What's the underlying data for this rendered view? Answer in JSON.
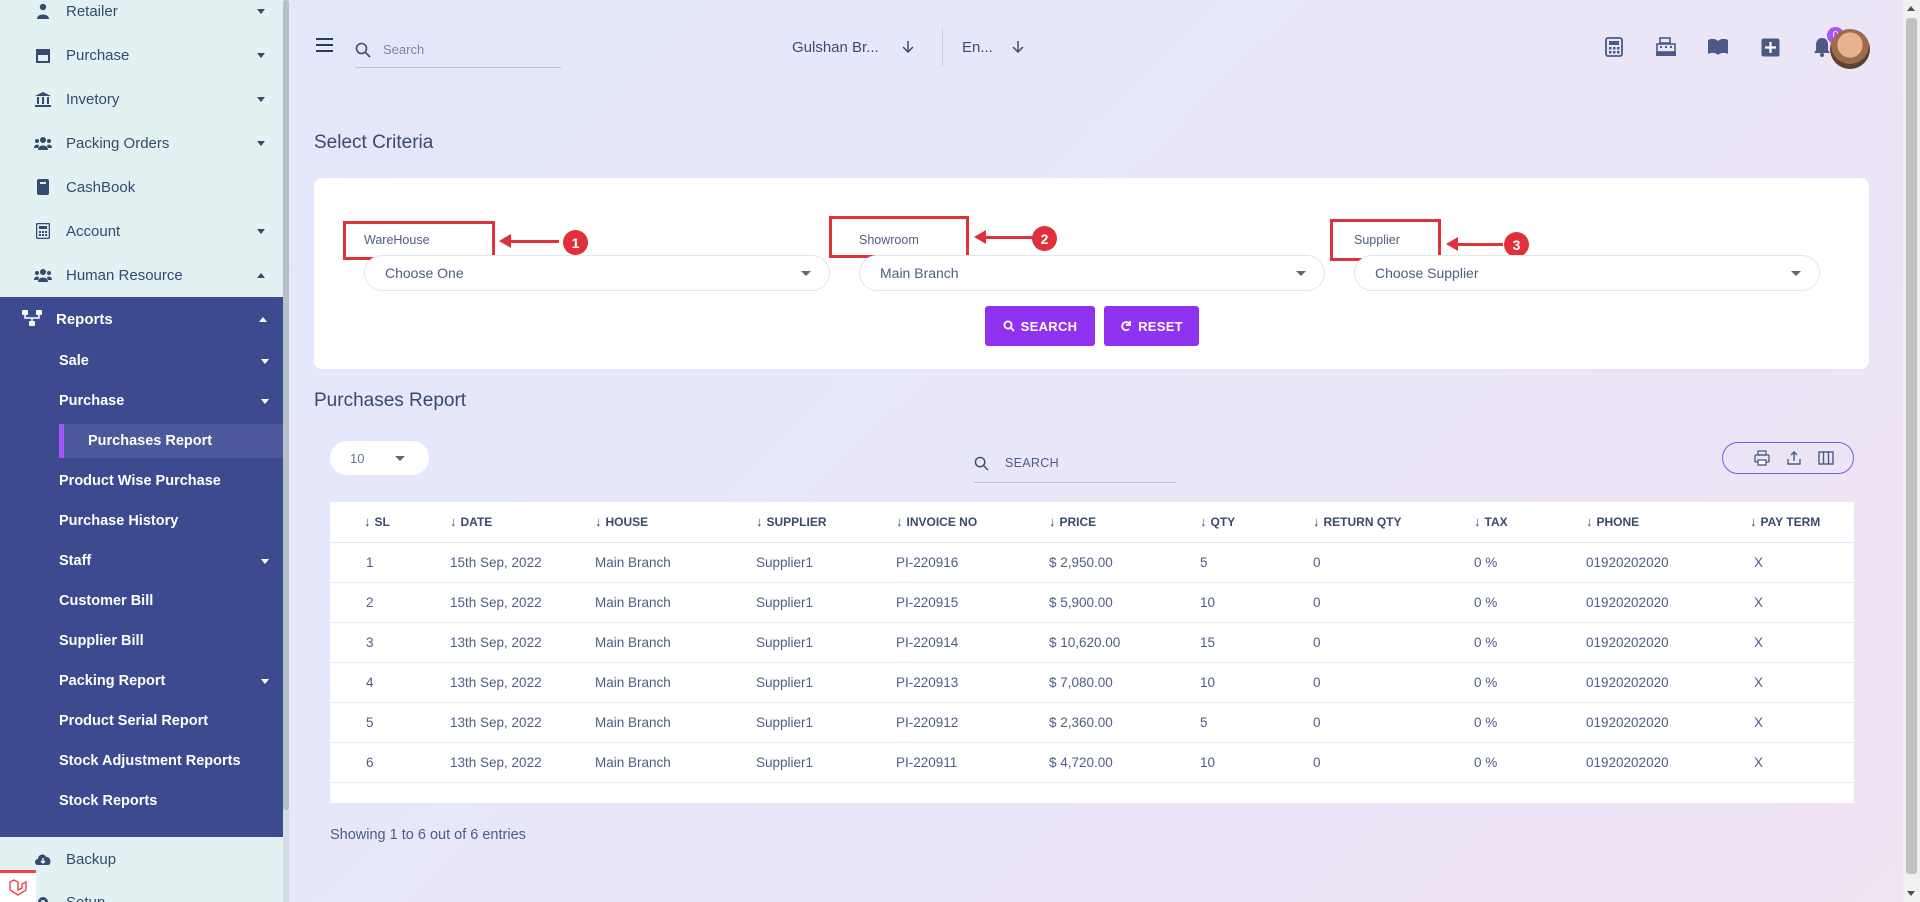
{
  "sidebar": {
    "top_items": [
      {
        "label": "Retailer",
        "icon": "user-tie-icon",
        "has_caret": true
      },
      {
        "label": "Purchase",
        "icon": "store-icon",
        "has_caret": true
      },
      {
        "label": "Invetory",
        "icon": "bank-icon",
        "has_caret": true
      },
      {
        "label": "Packing Orders",
        "icon": "users-icon",
        "has_caret": true
      },
      {
        "label": "CashBook",
        "icon": "book-icon",
        "has_caret": false
      },
      {
        "label": "Account",
        "icon": "calculator-icon",
        "has_caret": true
      },
      {
        "label": "Human Resource",
        "icon": "users-icon",
        "has_caret": true
      }
    ],
    "reports": {
      "label": "Reports",
      "items": [
        {
          "label": "Sale"
        },
        {
          "label": "Purchase"
        },
        {
          "label": "Purchases Report"
        },
        {
          "label": "Product Wise Purchase"
        },
        {
          "label": "Purchase History"
        },
        {
          "label": "Staff"
        },
        {
          "label": "Customer Bill"
        },
        {
          "label": "Supplier Bill"
        },
        {
          "label": "Packing Report"
        },
        {
          "label": "Product Serial Report"
        },
        {
          "label": "Stock Adjustment Reports"
        },
        {
          "label": "Stock Reports"
        }
      ]
    },
    "bottom_items": [
      {
        "label": "Backup"
      },
      {
        "label": "Setup"
      }
    ]
  },
  "header": {
    "search_placeholder": "Search",
    "branch": "Gulshan Br...",
    "language": "En...",
    "notification_count": "0"
  },
  "criteria": {
    "title": "Select Criteria",
    "warehouse": {
      "label": "WareHouse",
      "value": "Choose One",
      "annotation": "1"
    },
    "showroom": {
      "label": "Showroom",
      "value": "Main Branch",
      "annotation": "2"
    },
    "supplier": {
      "label": "Supplier",
      "value": "Choose Supplier",
      "annotation": "3"
    },
    "search_button": "SEARCH",
    "reset_button": "RESET"
  },
  "report": {
    "title": "Purchases Report",
    "page_length": "10",
    "search_placeholder": "SEARCH",
    "columns": [
      "SL",
      "DATE",
      "HOUSE",
      "SUPPLIER",
      "INVOICE NO",
      "PRICE",
      "QTY",
      "RETURN QTY",
      "TAX",
      "PHONE",
      "PAY TERM"
    ],
    "rows": [
      [
        "1",
        "15th Sep, 2022",
        "Main Branch",
        "Supplier1",
        "PI-220916",
        "$ 2,950.00",
        "5",
        "0",
        "0 %",
        "01920202020",
        "X"
      ],
      [
        "2",
        "15th Sep, 2022",
        "Main Branch",
        "Supplier1",
        "PI-220915",
        "$ 5,900.00",
        "10",
        "0",
        "0 %",
        "01920202020",
        "X"
      ],
      [
        "3",
        "13th Sep, 2022",
        "Main Branch",
        "Supplier1",
        "PI-220914",
        "$ 10,620.00",
        "15",
        "0",
        "0 %",
        "01920202020",
        "X"
      ],
      [
        "4",
        "13th Sep, 2022",
        "Main Branch",
        "Supplier1",
        "PI-220913",
        "$ 7,080.00",
        "10",
        "0",
        "0 %",
        "01920202020",
        "X"
      ],
      [
        "5",
        "13th Sep, 2022",
        "Main Branch",
        "Supplier1",
        "PI-220912",
        "$ 2,360.00",
        "5",
        "0",
        "0 %",
        "01920202020",
        "X"
      ],
      [
        "6",
        "13th Sep, 2022",
        "Main Branch",
        "Supplier1",
        "PI-220911",
        "$ 4,720.00",
        "10",
        "0",
        "0 %",
        "01920202020",
        "X"
      ]
    ],
    "footer": "Showing 1 to 6 out of 6 entries"
  },
  "colors": {
    "accent": "#8f33f0",
    "sidebar_active": "#3c4a8f",
    "annotation": "#e0303a"
  }
}
